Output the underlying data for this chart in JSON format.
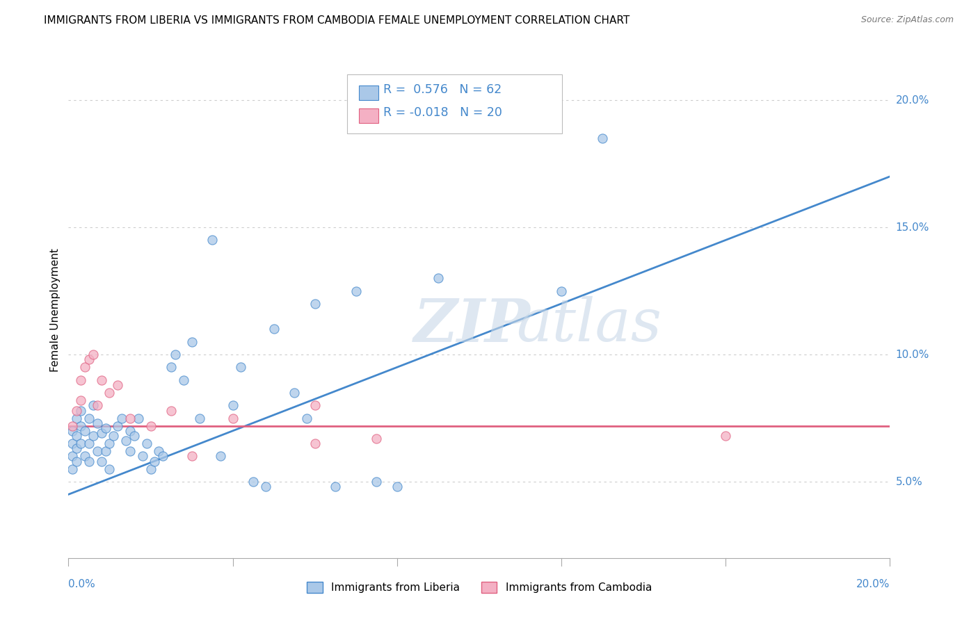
{
  "title": "IMMIGRANTS FROM LIBERIA VS IMMIGRANTS FROM CAMBODIA FEMALE UNEMPLOYMENT CORRELATION CHART",
  "source": "Source: ZipAtlas.com",
  "ylabel": "Female Unemployment",
  "xlim": [
    0.0,
    0.2
  ],
  "ylim": [
    0.02,
    0.215
  ],
  "ytick_labels": [
    "5.0%",
    "10.0%",
    "15.0%",
    "20.0%"
  ],
  "ytick_values": [
    0.05,
    0.1,
    0.15,
    0.2
  ],
  "liberia_R": 0.576,
  "liberia_N": 62,
  "cambodia_R": -0.018,
  "cambodia_N": 20,
  "liberia_color": "#aac8e8",
  "cambodia_color": "#f4b0c4",
  "liberia_line_color": "#4488cc",
  "cambodia_line_color": "#e06080",
  "watermark_zip": "ZIP",
  "watermark_atlas": "atlas",
  "line_blue_x0": 0.0,
  "line_blue_y0": 0.045,
  "line_blue_x1": 0.2,
  "line_blue_y1": 0.17,
  "line_pink_x0": 0.0,
  "line_pink_y0": 0.072,
  "line_pink_x1": 0.2,
  "line_pink_y1": 0.072,
  "liberia_x": [
    0.001,
    0.001,
    0.001,
    0.001,
    0.002,
    0.002,
    0.002,
    0.002,
    0.003,
    0.003,
    0.003,
    0.004,
    0.004,
    0.005,
    0.005,
    0.005,
    0.006,
    0.006,
    0.007,
    0.007,
    0.008,
    0.008,
    0.009,
    0.009,
    0.01,
    0.01,
    0.011,
    0.012,
    0.013,
    0.014,
    0.015,
    0.015,
    0.016,
    0.017,
    0.018,
    0.019,
    0.02,
    0.021,
    0.022,
    0.023,
    0.025,
    0.026,
    0.028,
    0.03,
    0.032,
    0.035,
    0.037,
    0.04,
    0.042,
    0.045,
    0.048,
    0.05,
    0.055,
    0.058,
    0.06,
    0.065,
    0.07,
    0.075,
    0.08,
    0.09,
    0.12,
    0.13
  ],
  "liberia_y": [
    0.065,
    0.07,
    0.06,
    0.055,
    0.068,
    0.075,
    0.063,
    0.058,
    0.072,
    0.065,
    0.078,
    0.07,
    0.06,
    0.075,
    0.065,
    0.058,
    0.08,
    0.068,
    0.073,
    0.062,
    0.069,
    0.058,
    0.071,
    0.062,
    0.065,
    0.055,
    0.068,
    0.072,
    0.075,
    0.066,
    0.062,
    0.07,
    0.068,
    0.075,
    0.06,
    0.065,
    0.055,
    0.058,
    0.062,
    0.06,
    0.095,
    0.1,
    0.09,
    0.105,
    0.075,
    0.145,
    0.06,
    0.08,
    0.095,
    0.05,
    0.048,
    0.11,
    0.085,
    0.075,
    0.12,
    0.048,
    0.125,
    0.05,
    0.048,
    0.13,
    0.125,
    0.185
  ],
  "cambodia_x": [
    0.001,
    0.002,
    0.003,
    0.003,
    0.004,
    0.005,
    0.006,
    0.007,
    0.008,
    0.01,
    0.012,
    0.015,
    0.02,
    0.025,
    0.03,
    0.04,
    0.06,
    0.06,
    0.075,
    0.16
  ],
  "cambodia_y": [
    0.072,
    0.078,
    0.082,
    0.09,
    0.095,
    0.098,
    0.1,
    0.08,
    0.09,
    0.085,
    0.088,
    0.075,
    0.072,
    0.078,
    0.06,
    0.075,
    0.08,
    0.065,
    0.067,
    0.068
  ]
}
